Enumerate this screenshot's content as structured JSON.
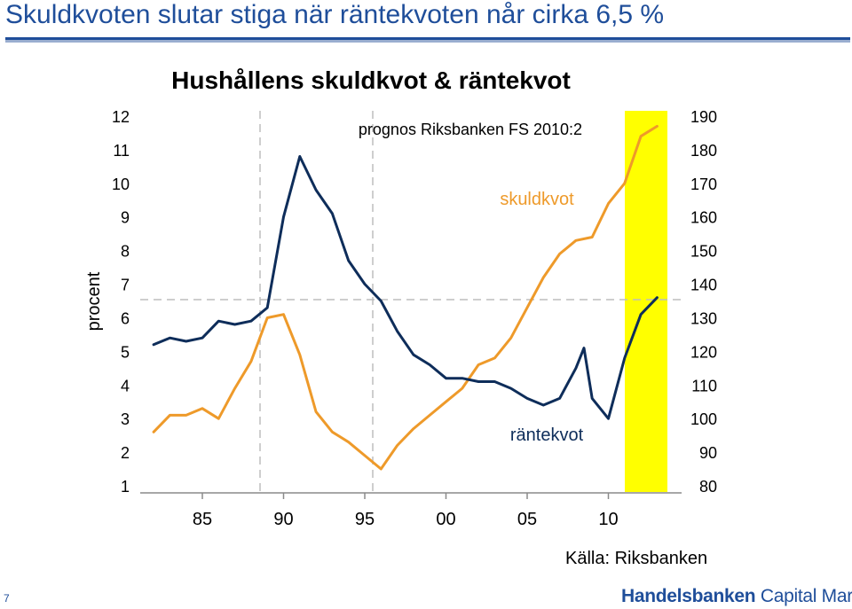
{
  "page": {
    "title": "Skuldkvoten slutar stiga när räntekvoten når cirka 6,5 %",
    "page_number": "7",
    "source": "Källa: Riksbanken",
    "brand": {
      "name": "Handelsbanken",
      "division": "Capital Markets"
    },
    "colors": {
      "accent": "#1f4e9a",
      "forecast_band": "#ffff00"
    }
  },
  "chart_data": {
    "type": "line",
    "title": "Hushållens skuldkvot & räntekvot",
    "ylabel": "procent",
    "y_left": {
      "min": 1,
      "max": 12,
      "ticks": [
        "1",
        "2",
        "3",
        "4",
        "5",
        "6",
        "7",
        "8",
        "9",
        "10",
        "11",
        "12"
      ]
    },
    "y_right": {
      "min": 80,
      "max": 190,
      "ticks": [
        "80",
        "90",
        "100",
        "110",
        "120",
        "130",
        "140",
        "150",
        "160",
        "170",
        "180",
        "190"
      ]
    },
    "x_ticks": [
      {
        "label": "85",
        "year": 1985
      },
      {
        "label": "90",
        "year": 1990
      },
      {
        "label": "95",
        "year": 1995
      },
      {
        "label": "00",
        "year": 2000
      },
      {
        "label": "05",
        "year": 2005
      },
      {
        "label": "10",
        "year": 2010
      }
    ],
    "forecast": {
      "label": "prognos Riksbanken FS 2010:2",
      "from": 2010,
      "to": 2013
    },
    "series": [
      {
        "name": "räntekvot",
        "axis": "left",
        "color": "#0e2d5a",
        "x": [
          1982,
          1983,
          1984,
          1985,
          1986,
          1987,
          1988,
          1989,
          1990,
          1991,
          1992,
          1993,
          1994,
          1995,
          1996,
          1997,
          1998,
          1999,
          2000,
          2001,
          2002,
          2003,
          2004,
          2005,
          2006,
          2007,
          2008,
          2008.5,
          2009,
          2010,
          2011,
          2012,
          2013
        ],
        "values": [
          5.2,
          5.4,
          5.3,
          5.4,
          5.9,
          5.8,
          5.9,
          6.3,
          9.0,
          10.8,
          9.8,
          9.1,
          7.7,
          7.0,
          6.5,
          5.6,
          4.9,
          4.6,
          4.2,
          4.2,
          4.1,
          4.1,
          3.9,
          3.6,
          3.4,
          3.6,
          4.5,
          5.1,
          3.6,
          3.0,
          4.8,
          6.1,
          6.6
        ]
      },
      {
        "name": "skuldkvot",
        "axis": "right",
        "color": "#ee9a2a",
        "x": [
          1982,
          1983,
          1984,
          1985,
          1986,
          1987,
          1988,
          1989,
          1990,
          1991,
          1992,
          1993,
          1994,
          1995,
          1996,
          1997,
          1998,
          1999,
          2000,
          2001,
          2002,
          2003,
          2004,
          2005,
          2006,
          2007,
          2008,
          2009,
          2010,
          2011,
          2012,
          2013
        ],
        "values": [
          96,
          101,
          101,
          103,
          100,
          109,
          117,
          130,
          131,
          119,
          102,
          96,
          93,
          89,
          85,
          92,
          97,
          101,
          105,
          109,
          116,
          118,
          124,
          133,
          142,
          149,
          153,
          154,
          164,
          170,
          184,
          187
        ]
      }
    ]
  }
}
